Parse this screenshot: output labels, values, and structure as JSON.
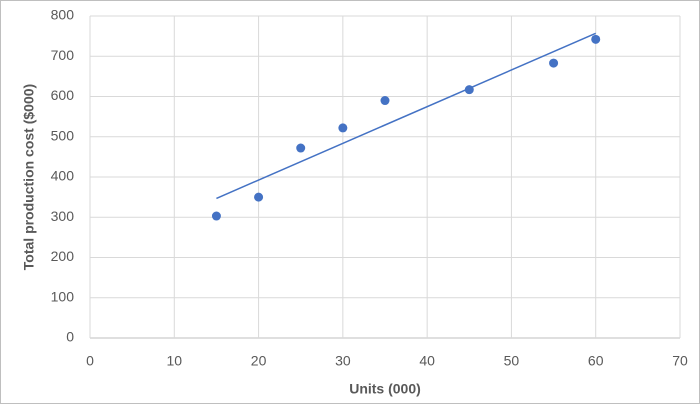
{
  "chart_data": {
    "type": "scatter",
    "x_label": "Units (000)",
    "y_label": "Total production cost ($000)",
    "x": [
      15,
      20,
      25,
      30,
      35,
      45,
      55,
      60
    ],
    "values": [
      303,
      350,
      472,
      522,
      590,
      617,
      683,
      742
    ],
    "color": "#4472c4",
    "trendline": true,
    "grid": true,
    "xlim": [
      0,
      70
    ],
    "xticks": [
      0,
      10,
      20,
      30,
      40,
      50,
      60,
      70
    ],
    "ylim": [
      0,
      800
    ],
    "yticks": [
      0,
      100,
      200,
      300,
      400,
      500,
      600,
      700,
      800
    ]
  }
}
